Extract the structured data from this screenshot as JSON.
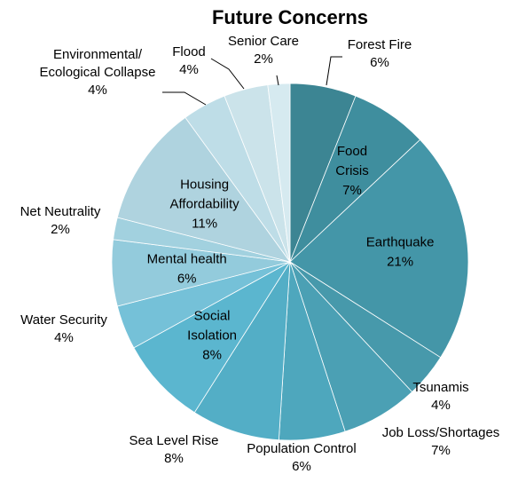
{
  "chart_data": {
    "type": "pie",
    "title": "Future Concerns",
    "start_angle_deg": 0,
    "direction": "clockwise",
    "slices": [
      {
        "label": "Forest Fire",
        "value": 6,
        "value_label": "6%",
        "color": "#3c8593"
      },
      {
        "label": "Food Crisis",
        "value": 7,
        "value_label": "7%",
        "color": "#3f8e9e"
      },
      {
        "label": "Earthquake",
        "value": 21,
        "value_label": "21%",
        "color": "#4496a8"
      },
      {
        "label": "Tsunamis",
        "value": 4,
        "value_label": "4%",
        "color": "#4799ab"
      },
      {
        "label": "Job Loss/Shortages",
        "value": 7,
        "value_label": "7%",
        "color": "#4ba0b4"
      },
      {
        "label": "Population Control",
        "value": 6,
        "value_label": "6%",
        "color": "#4ea7bd"
      },
      {
        "label": "Sea Level Rise",
        "value": 8,
        "value_label": "8%",
        "color": "#53aec6"
      },
      {
        "label": "Social Isolation",
        "value": 8,
        "value_label": "8%",
        "color": "#5bb6cf"
      },
      {
        "label": "Water Security",
        "value": 4,
        "value_label": "4%",
        "color": "#75c1d8"
      },
      {
        "label": "Mental health",
        "value": 6,
        "value_label": "6%",
        "color": "#93cbdc"
      },
      {
        "label": "Net Neutrality",
        "value": 2,
        "value_label": "2%",
        "color": "#a2d1df"
      },
      {
        "label": "Housing Affordability",
        "value": 11,
        "value_label": "11%",
        "color": "#afd3df"
      },
      {
        "label": "Environmental/ Ecological Collapse",
        "value": 4,
        "value_label": "4%",
        "color": "#bedde7"
      },
      {
        "label": "Flood",
        "value": 4,
        "value_label": "4%",
        "color": "#cbe3ea"
      },
      {
        "label": "Senior Care",
        "value": 2,
        "value_label": "2%",
        "color": "#d6eaf0"
      }
    ]
  }
}
